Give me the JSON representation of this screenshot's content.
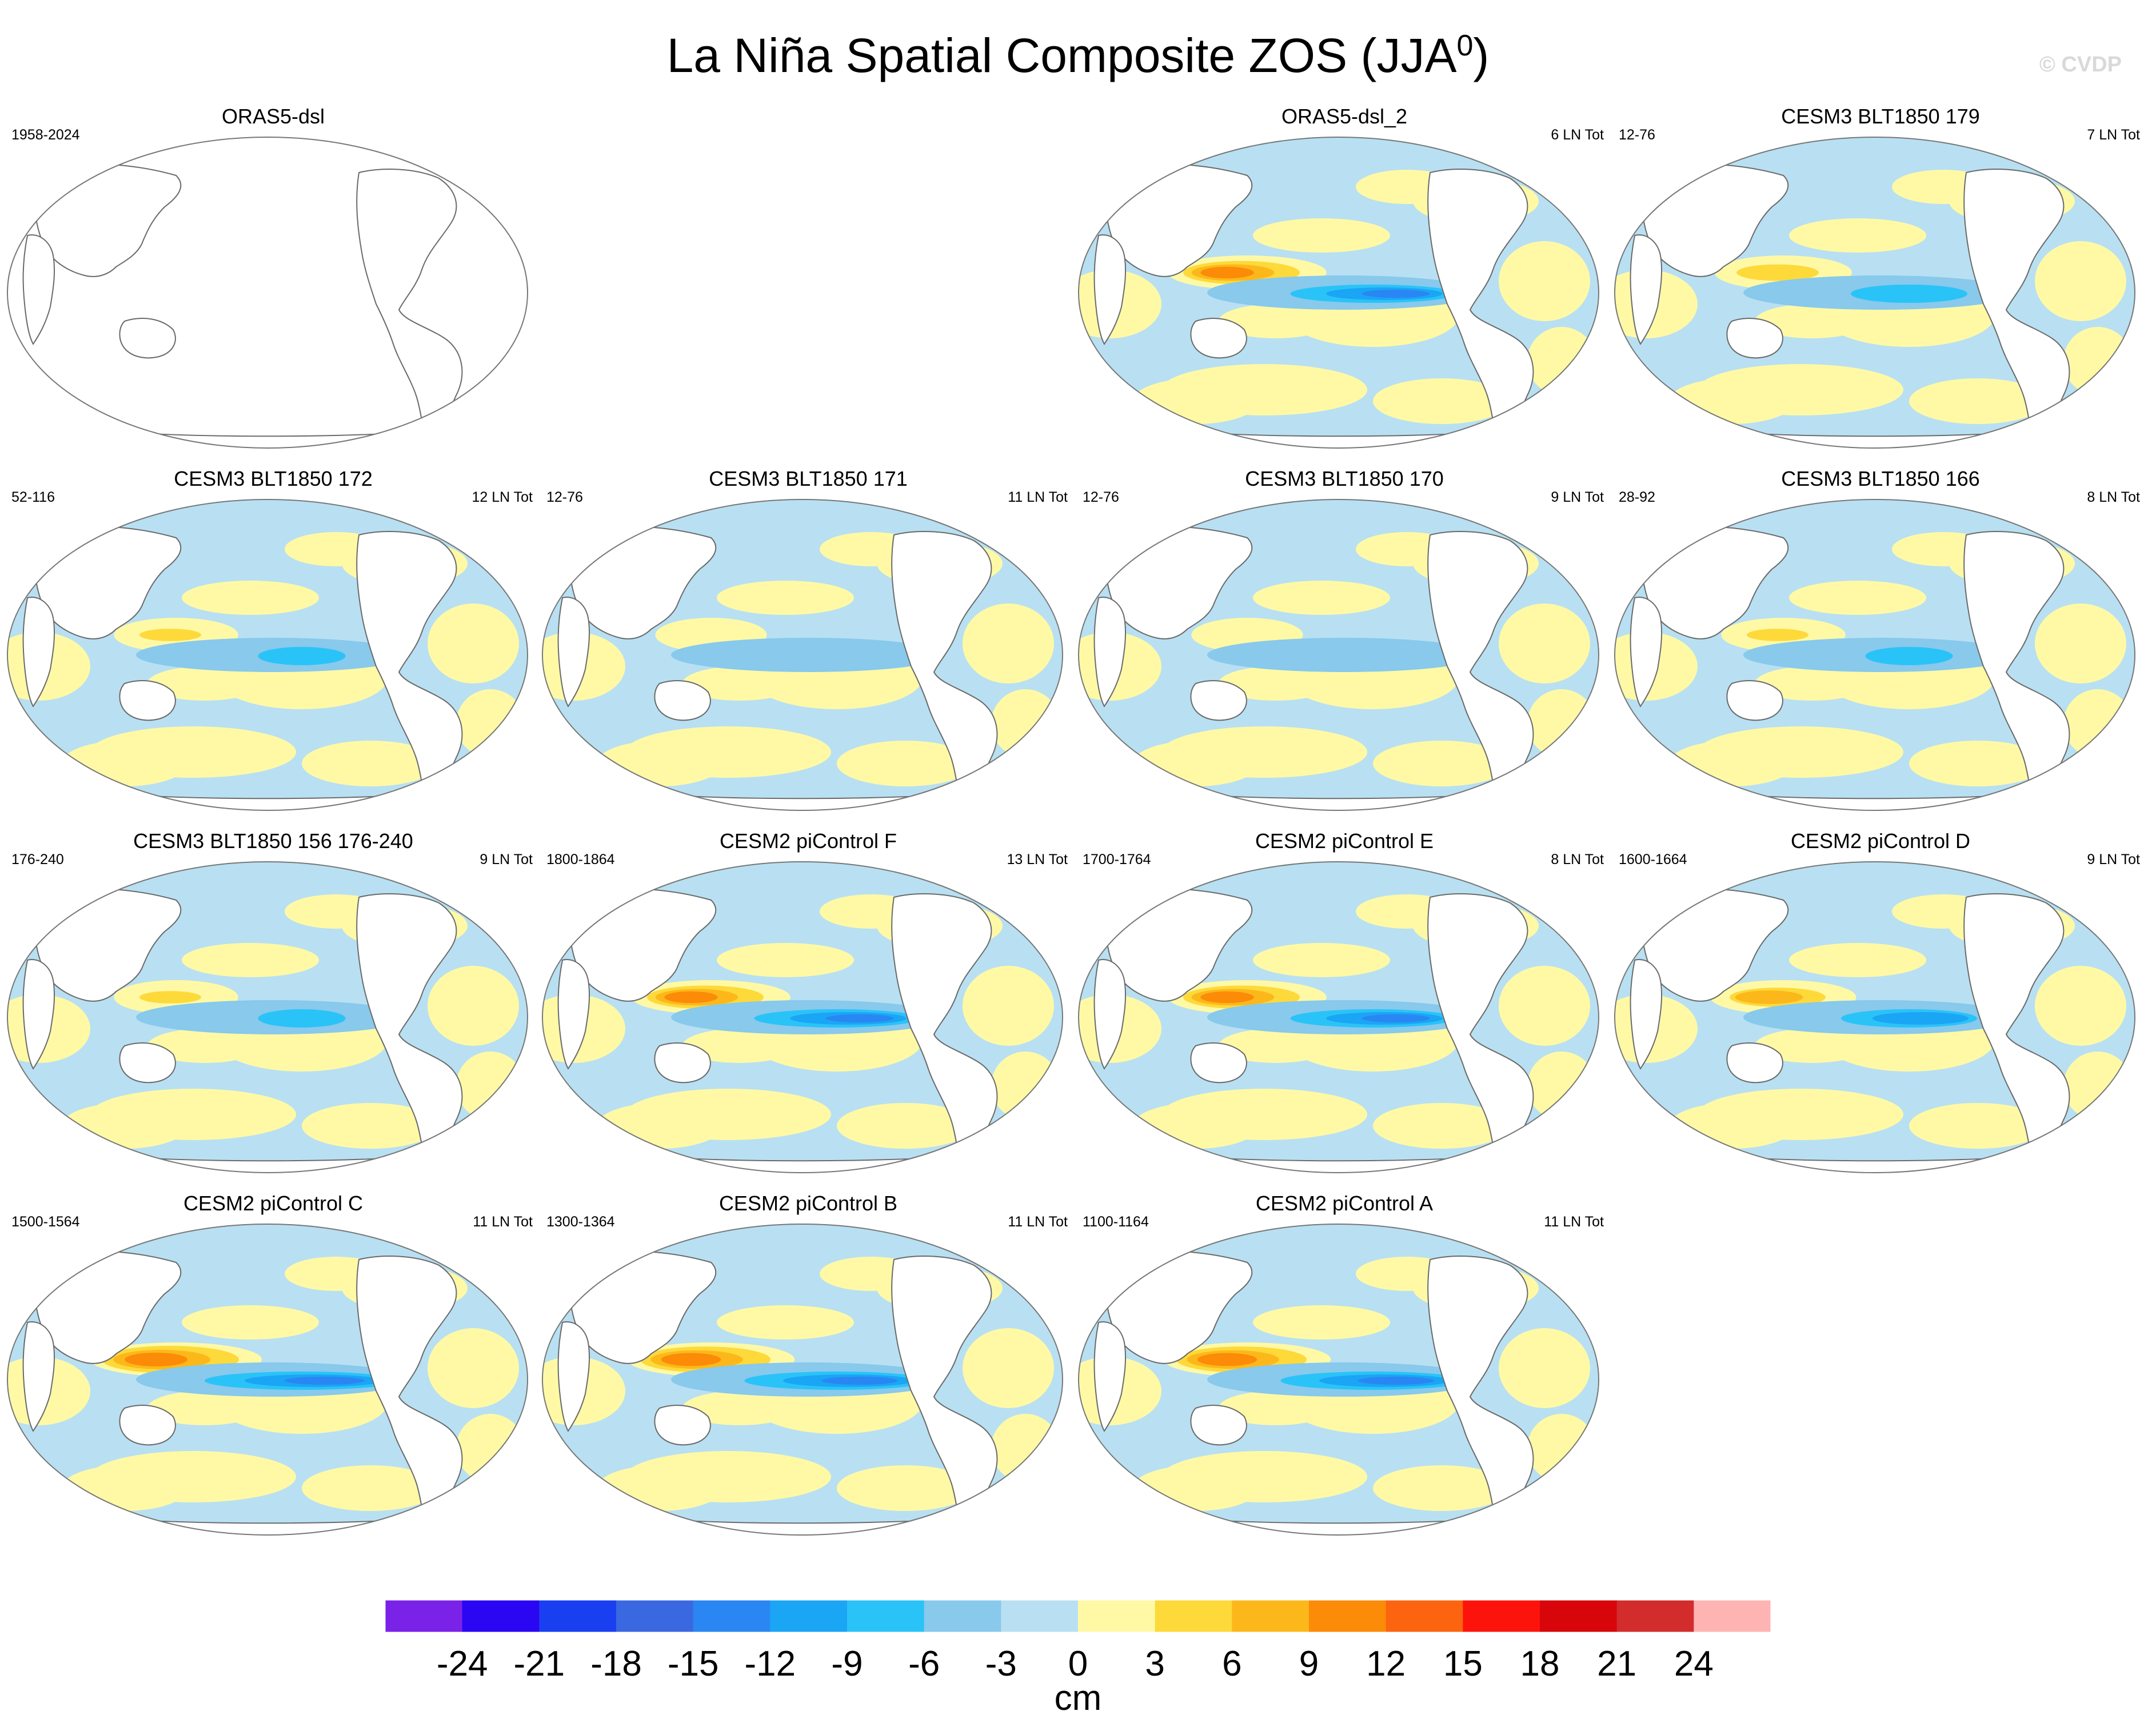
{
  "title": "La Niña Spatial Composite ZOS (JJA",
  "title_sup": "0",
  "title_close": ")",
  "watermark": "© CVDP",
  "chart_data": {
    "type": "map-panel-grid",
    "variable": "ZOS",
    "season": "JJA0",
    "units": "cm",
    "colorbar": {
      "levels": [
        -24,
        -21,
        -18,
        -15,
        -12,
        -9,
        -6,
        -3,
        0,
        3,
        6,
        9,
        12,
        15,
        18,
        21,
        24
      ],
      "labels": [
        "-24",
        "-21",
        "-18",
        "-15",
        "-12",
        "-9",
        "-6",
        "-3",
        "0",
        "3",
        "6",
        "9",
        "12",
        "15",
        "18",
        "21",
        "24"
      ],
      "colors": [
        "#7a22e8",
        "#2a06f2",
        "#1a3ff0",
        "#3a68e0",
        "#2a86f2",
        "#1aa5f5",
        "#2ac3f8",
        "#88c9ec",
        "#b8e0f2",
        "#fff9a6",
        "#fdd93a",
        "#fcb81a",
        "#fc8b08",
        "#fc6410",
        "#fc140c",
        "#d8060a",
        "#d22c2c",
        "#ffb4b4"
      ],
      "unit_label": "cm"
    },
    "panels": [
      {
        "title": "ORAS5-dsl",
        "years": "1958-2024",
        "count": "",
        "intensity": 0
      },
      {
        "title": "ORAS5-dsl_2",
        "years": "",
        "count": "6 LN Tot",
        "intensity": 0.85
      },
      {
        "title": "CESM3 BLT1850 179",
        "years": "12-76",
        "count": "7 LN Tot",
        "intensity": 0.6
      },
      {
        "title": "CESM3 BLT1850 172",
        "years": "52-116",
        "count": "12 LN Tot",
        "intensity": 0.45
      },
      {
        "title": "CESM3 BLT1850 171",
        "years": "12-76",
        "count": "11 LN Tot",
        "intensity": 0.3
      },
      {
        "title": "CESM3 BLT1850 170",
        "years": "12-76",
        "count": "9 LN Tot",
        "intensity": 0.3
      },
      {
        "title": "CESM3 BLT1850 166",
        "years": "28-92",
        "count": "8 LN Tot",
        "intensity": 0.45
      },
      {
        "title": "CESM3 BLT1850 156 176-240",
        "years": "176-240",
        "count": "9 LN Tot",
        "intensity": 0.45
      },
      {
        "title": "CESM2 piControl F",
        "years": "1800-1864",
        "count": "13 LN Tot",
        "intensity": 0.85
      },
      {
        "title": "CESM2 piControl E",
        "years": "1700-1764",
        "count": "8 LN Tot",
        "intensity": 0.85
      },
      {
        "title": "CESM2 piControl D",
        "years": "1600-1664",
        "count": "9 LN Tot",
        "intensity": 0.7
      },
      {
        "title": "CESM2 piControl C",
        "years": "1500-1564",
        "count": "11 LN Tot",
        "intensity": 1.0
      },
      {
        "title": "CESM2 piControl B",
        "years": "1300-1364",
        "count": "11 LN Tot",
        "intensity": 0.95
      },
      {
        "title": "CESM2 piControl A",
        "years": "1100-1164",
        "count": "11 LN Tot",
        "intensity": 0.95
      }
    ]
  }
}
